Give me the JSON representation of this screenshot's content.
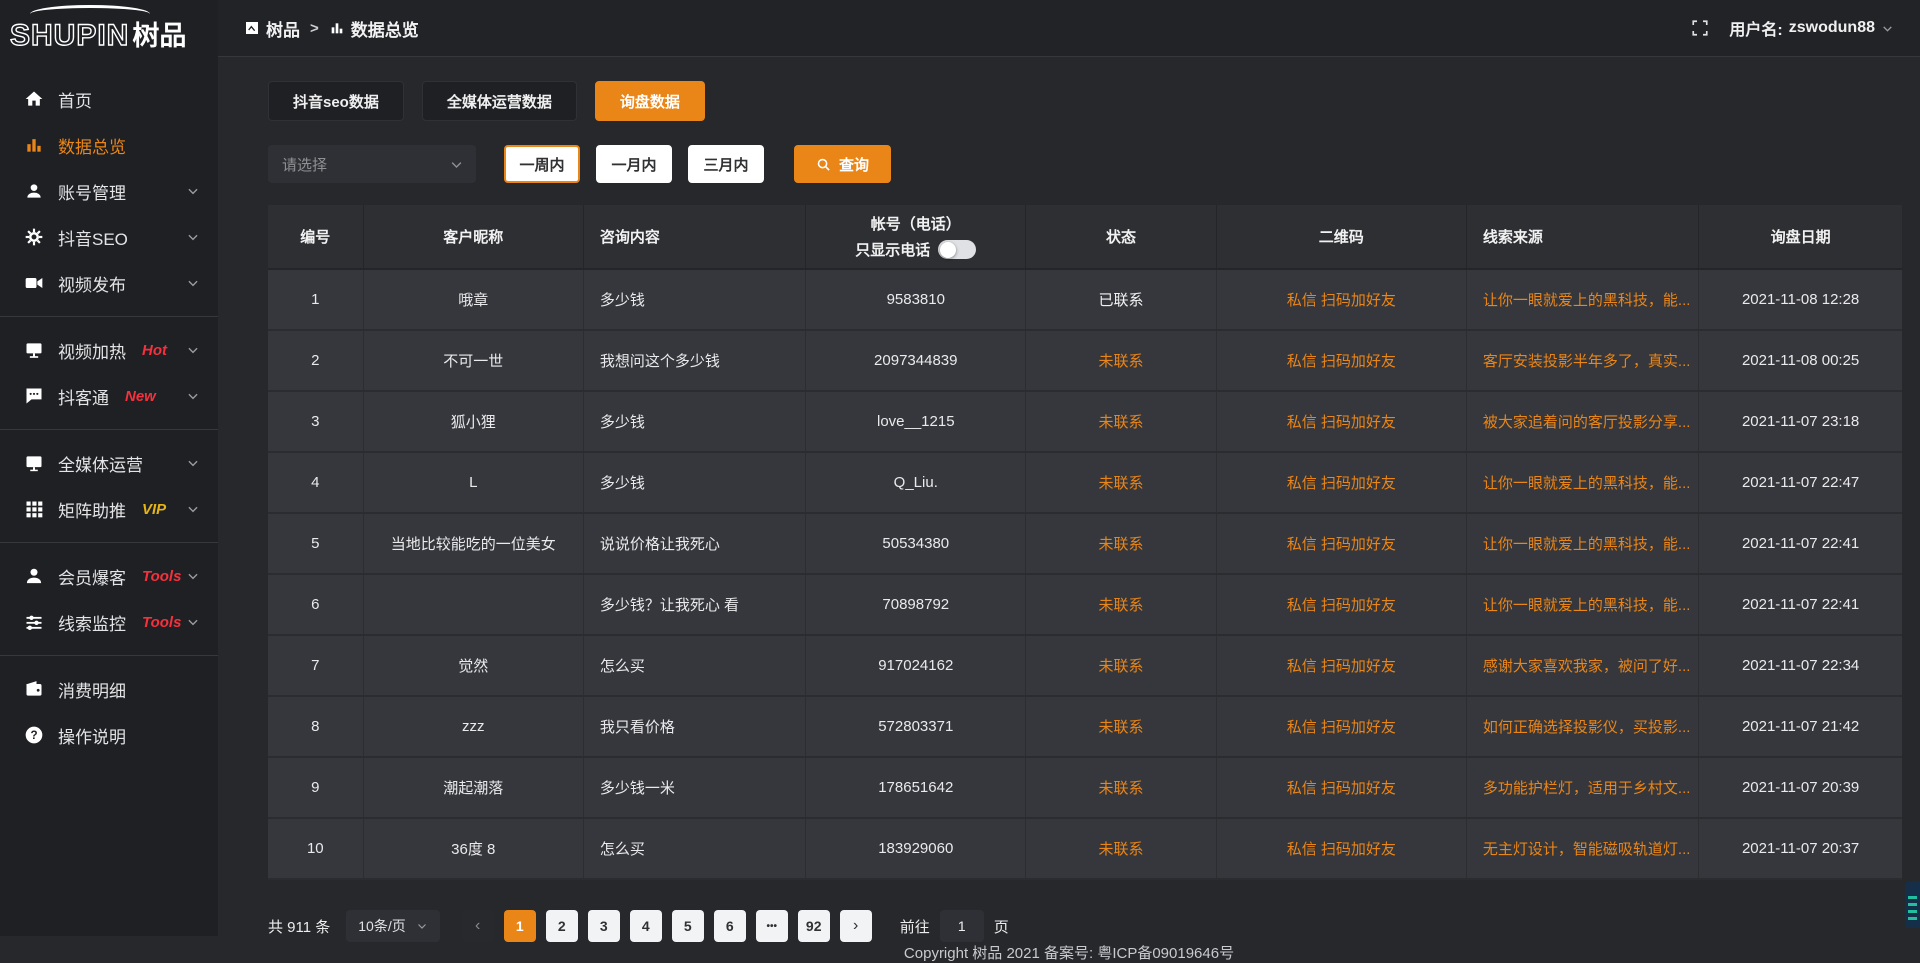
{
  "colors": {
    "accent": "#ea8517",
    "badge_red": "#f5313d",
    "badge_gold": "#e7b416",
    "status_uncontacted": "#ea8517"
  },
  "brand": {
    "logo_en": "SHUPIN",
    "logo_cn": "树品"
  },
  "sidebar": {
    "items": [
      {
        "id": "home",
        "label": "首页",
        "icon": "home-icon",
        "active": false,
        "expandable": false,
        "divider_after": false
      },
      {
        "id": "data-overview",
        "label": "数据总览",
        "icon": "bar-chart-icon",
        "active": true,
        "expandable": false,
        "divider_after": false
      },
      {
        "id": "account-manage",
        "label": "账号管理",
        "icon": "user-icon",
        "active": false,
        "expandable": true,
        "divider_after": false
      },
      {
        "id": "douyin-seo",
        "label": "抖音SEO",
        "icon": "gear-icon",
        "active": false,
        "expandable": true,
        "divider_after": false
      },
      {
        "id": "video-publish",
        "label": "视频发布",
        "icon": "video-icon",
        "active": false,
        "expandable": true,
        "divider_after": true
      },
      {
        "id": "video-heat",
        "label": "视频加热",
        "icon": "monitor-icon",
        "badge": "Hot",
        "badge_color": "red",
        "active": false,
        "expandable": true,
        "divider_after": false
      },
      {
        "id": "doukotong",
        "label": "抖客通",
        "icon": "chat-icon",
        "badge": "New",
        "badge_color": "red",
        "active": false,
        "expandable": true,
        "divider_after": true
      },
      {
        "id": "media-operation",
        "label": "全媒体运营",
        "icon": "screen-icon",
        "active": false,
        "expandable": true,
        "divider_after": false
      },
      {
        "id": "matrix-boost",
        "label": "矩阵助推",
        "icon": "grid-icon",
        "badge": "VIP",
        "badge_color": "gold",
        "active": false,
        "expandable": true,
        "divider_after": true
      },
      {
        "id": "member-baoke",
        "label": "会员爆客",
        "icon": "person-icon",
        "badge": "Tools",
        "badge_color": "red",
        "active": false,
        "expandable": true,
        "divider_after": false
      },
      {
        "id": "clue-monitor",
        "label": "线索监控",
        "icon": "sliders-icon",
        "badge": "Tools",
        "badge_color": "red",
        "active": false,
        "expandable": true,
        "divider_after": true
      },
      {
        "id": "consume-detail",
        "label": "消费明细",
        "icon": "wallet-icon",
        "active": false,
        "expandable": false,
        "divider_after": false
      },
      {
        "id": "help",
        "label": "操作说明",
        "icon": "question-icon",
        "active": false,
        "expandable": false,
        "divider_after": false
      }
    ]
  },
  "header": {
    "breadcrumb_1": "树品",
    "breadcrumb_sep": ">",
    "breadcrumb_2": "数据总览",
    "username_label": "用户名:",
    "username": "zswodun88"
  },
  "tabs": [
    {
      "label": "抖音seo数据",
      "active": false
    },
    {
      "label": "全媒体运营数据",
      "active": false
    },
    {
      "label": "询盘数据",
      "active": true
    }
  ],
  "filters": {
    "select_placeholder": "请选择",
    "periods": [
      {
        "label": "一周内",
        "selected": true
      },
      {
        "label": "一月内",
        "selected": false
      },
      {
        "label": "三月内",
        "selected": false
      }
    ],
    "query_label": "查询"
  },
  "table": {
    "columns": [
      "编号",
      "客户昵称",
      "咨询内容",
      "帐号（电话）",
      "状态",
      "二维码",
      "线索来源",
      "询盘日期"
    ],
    "phone_toggle_label": "只显示电话",
    "rows": [
      {
        "id": "1",
        "nickname": "哦章",
        "content": "多少钱",
        "account": "9583810",
        "status": "已联系",
        "status_type": "contacted",
        "qrcode": "私信 扫码加好友",
        "source": "让你一眼就爱上的黑科技，能...",
        "date": "2021-11-08 12:28"
      },
      {
        "id": "2",
        "nickname": "不可一世",
        "content": "我想问这个多少钱",
        "account": "2097344839",
        "status": "未联系",
        "status_type": "uncontacted",
        "qrcode": "私信 扫码加好友",
        "source": "客厅安装投影半年多了，真实...",
        "date": "2021-11-08 00:25"
      },
      {
        "id": "3",
        "nickname": "狐小狸",
        "content": "多少钱",
        "account": "love__1215",
        "status": "未联系",
        "status_type": "uncontacted",
        "qrcode": "私信 扫码加好友",
        "source": "被大家追着问的客厅投影分享...",
        "date": "2021-11-07 23:18"
      },
      {
        "id": "4",
        "nickname": "L",
        "content": "多少钱",
        "account": "Q_Liu.",
        "status": "未联系",
        "status_type": "uncontacted",
        "qrcode": "私信 扫码加好友",
        "source": "让你一眼就爱上的黑科技，能...",
        "date": "2021-11-07 22:47"
      },
      {
        "id": "5",
        "nickname": "当地比较能吃的一位美女",
        "content": "说说价格让我死心",
        "account": "50534380",
        "status": "未联系",
        "status_type": "uncontacted",
        "qrcode": "私信 扫码加好友",
        "source": "让你一眼就爱上的黑科技，能...",
        "date": "2021-11-07 22:41"
      },
      {
        "id": "6",
        "nickname": "",
        "content": "多少钱？让我死心 看",
        "account": "70898792",
        "status": "未联系",
        "status_type": "uncontacted",
        "qrcode": "私信 扫码加好友",
        "source": "让你一眼就爱上的黑科技，能...",
        "date": "2021-11-07 22:41"
      },
      {
        "id": "7",
        "nickname": "觉然",
        "content": "怎么买",
        "account": "917024162",
        "status": "未联系",
        "status_type": "uncontacted",
        "qrcode": "私信 扫码加好友",
        "source": "感谢大家喜欢我家，被问了好...",
        "date": "2021-11-07 22:34"
      },
      {
        "id": "8",
        "nickname": "zzz",
        "content": "我只看价格",
        "account": "572803371",
        "status": "未联系",
        "status_type": "uncontacted",
        "qrcode": "私信 扫码加好友",
        "source": "如何正确选择投影仪，买投影...",
        "date": "2021-11-07 21:42"
      },
      {
        "id": "9",
        "nickname": "潮起潮落",
        "content": "多少钱一米",
        "account": "178651642",
        "status": "未联系",
        "status_type": "uncontacted",
        "qrcode": "私信 扫码加好友",
        "source": "多功能护栏灯，适用于乡村文...",
        "date": "2021-11-07 20:39"
      },
      {
        "id": "10",
        "nickname": "36度 8",
        "content": "怎么买",
        "account": "183929060",
        "status": "未联系",
        "status_type": "uncontacted",
        "qrcode": "私信 扫码加好友",
        "source": "无主灯设计，智能磁吸轨道灯...",
        "date": "2021-11-07 20:37"
      }
    ]
  },
  "pagination": {
    "total_label": "共 911 条",
    "page_size": "10条/页",
    "prev_label": "‹",
    "next_label": "›",
    "pages": [
      "1",
      "2",
      "3",
      "4",
      "5",
      "6",
      "...",
      "92"
    ],
    "active_page": "1",
    "goto_label": "前往",
    "goto_value": "1",
    "goto_suffix": "页"
  },
  "footer": {
    "copyright": "Copyright 树品 2021 备案号: 粤ICP备09019646号"
  }
}
